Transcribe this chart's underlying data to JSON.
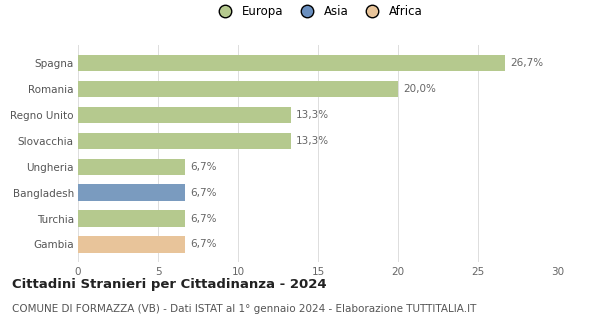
{
  "categories": [
    "Spagna",
    "Romania",
    "Regno Unito",
    "Slovacchia",
    "Ungheria",
    "Bangladesh",
    "Turchia",
    "Gambia"
  ],
  "values": [
    26.7,
    20.0,
    13.3,
    13.3,
    6.7,
    6.7,
    6.7,
    6.7
  ],
  "labels": [
    "26,7%",
    "20,0%",
    "13,3%",
    "13,3%",
    "6,7%",
    "6,7%",
    "6,7%",
    "6,7%"
  ],
  "bar_colors": [
    "#b5c98e",
    "#b5c98e",
    "#b5c98e",
    "#b5c98e",
    "#b5c98e",
    "#7a9bbf",
    "#b5c98e",
    "#e8c49a"
  ],
  "legend_items": [
    {
      "label": "Europa",
      "color": "#b5c98e"
    },
    {
      "label": "Asia",
      "color": "#6a8fbf"
    },
    {
      "label": "Africa",
      "color": "#e8c49a"
    }
  ],
  "xlim": [
    0,
    30
  ],
  "xticks": [
    0,
    5,
    10,
    15,
    20,
    25,
    30
  ],
  "title": "Cittadini Stranieri per Cittadinanza - 2024",
  "subtitle": "COMUNE DI FORMAZZA (VB) - Dati ISTAT al 1° gennaio 2024 - Elaborazione TUTTITALIA.IT",
  "title_fontsize": 9.5,
  "subtitle_fontsize": 7.5,
  "label_fontsize": 7.5,
  "tick_fontsize": 7.5,
  "legend_fontsize": 8.5,
  "background_color": "#ffffff",
  "grid_color": "#dddddd"
}
